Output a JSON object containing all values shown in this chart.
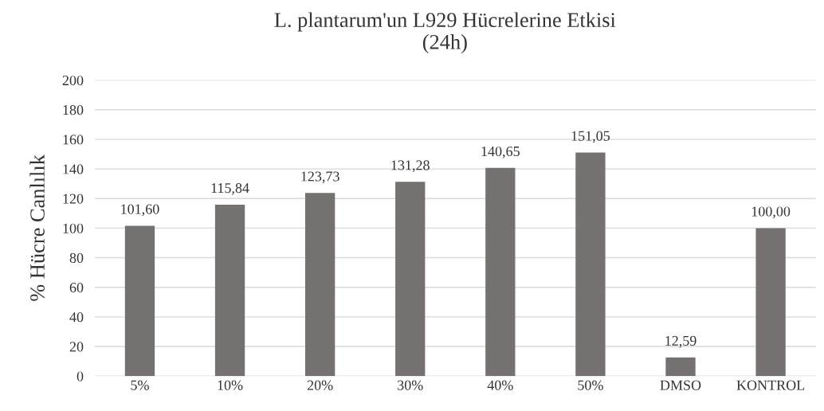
{
  "chart_data": {
    "type": "bar",
    "title": "L. plantarum'un L929 Hücrelerine Etkisi\n(24h)",
    "ylabel": "% Hücre Canlılık",
    "categories": [
      "5%",
      "10%",
      "20%",
      "30%",
      "40%",
      "50%",
      "DMSO",
      "KONTROL"
    ],
    "values": [
      101.6,
      115.84,
      123.73,
      131.28,
      140.65,
      151.05,
      12.59,
      100.0
    ],
    "value_labels": [
      "101,60",
      "115,84",
      "123,73",
      "131,28",
      "140,65",
      "151,05",
      "12,59",
      "100,00"
    ],
    "color": "#757170",
    "ylim": [
      0,
      200
    ],
    "yticks": [
      0,
      20,
      40,
      60,
      80,
      100,
      120,
      140,
      160,
      180,
      200
    ],
    "grid": "y"
  }
}
